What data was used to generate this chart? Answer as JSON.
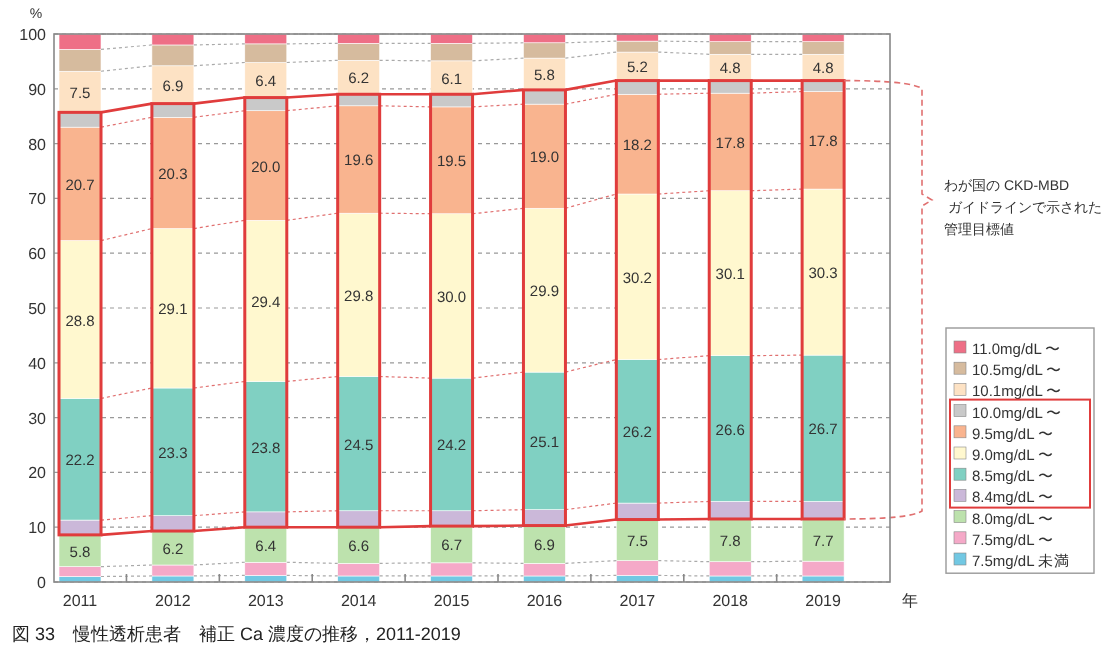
{
  "chart_data": {
    "type": "bar",
    "stacked": true,
    "title": "図 33　慢性透析患者　補正 Ca 濃度の推移，2011-2019",
    "xlabel": "年",
    "ylabel": "%",
    "categories": [
      "2011",
      "2012",
      "2013",
      "2014",
      "2015",
      "2016",
      "2017",
      "2018",
      "2019"
    ],
    "series": [
      {
        "name": "7.5mg/dL 未満",
        "color": "#72c8e3",
        "values": [
          1.0,
          1.1,
          1.2,
          1.1,
          1.1,
          1.1,
          1.2,
          1.1,
          1.1
        ]
      },
      {
        "name": "7.5mg/dL 〜",
        "color": "#f5a9c8",
        "values": [
          1.8,
          2.0,
          2.4,
          2.3,
          2.4,
          2.3,
          2.7,
          2.6,
          2.7
        ]
      },
      {
        "name": "8.0mg/dL 〜",
        "color": "#bde2ad",
        "values": [
          5.8,
          6.2,
          6.4,
          6.6,
          6.7,
          6.9,
          7.5,
          7.8,
          7.7
        ],
        "value_labels": [
          "5.8",
          "6.2",
          "6.4",
          "6.6",
          "6.7",
          "6.9",
          "7.5",
          "7.8",
          "7.7"
        ]
      },
      {
        "name": "8.4mg/dL 〜",
        "color": "#cbb8d9",
        "values": [
          2.7,
          2.8,
          2.8,
          3.0,
          2.8,
          2.9,
          3.0,
          3.2,
          3.2
        ]
      },
      {
        "name": "8.5mg/dL 〜",
        "color": "#80d0c2",
        "values": [
          22.2,
          23.3,
          23.8,
          24.5,
          24.2,
          25.1,
          26.2,
          26.6,
          26.7
        ],
        "value_labels": [
          "22.2",
          "23.3",
          "23.8",
          "24.5",
          "24.2",
          "25.1",
          "26.2",
          "26.6",
          "26.7"
        ]
      },
      {
        "name": "9.0mg/dL 〜",
        "color": "#fff8cf",
        "values": [
          28.8,
          29.1,
          29.4,
          29.8,
          30.0,
          29.9,
          30.2,
          30.1,
          30.3
        ],
        "value_labels": [
          "28.8",
          "29.1",
          "29.4",
          "29.8",
          "30.0",
          "29.9",
          "30.2",
          "30.1",
          "30.3"
        ]
      },
      {
        "name": "9.5mg/dL 〜",
        "color": "#f9b48f",
        "values": [
          20.7,
          20.3,
          20.0,
          19.6,
          19.5,
          19.0,
          18.2,
          17.8,
          17.8
        ],
        "value_labels": [
          "20.7",
          "20.3",
          "20.0",
          "19.6",
          "19.5",
          "19.0",
          "18.2",
          "17.8",
          "17.8"
        ]
      },
      {
        "name": "10.0mg/dL 〜",
        "color": "#c9c9c9",
        "values": [
          2.7,
          2.5,
          2.4,
          2.1,
          2.3,
          2.6,
          2.5,
          2.3,
          2.0
        ]
      },
      {
        "name": "10.1mg/dL 〜",
        "color": "#fde2c4",
        "values": [
          7.5,
          6.9,
          6.4,
          6.2,
          6.1,
          5.8,
          5.2,
          4.8,
          4.8
        ],
        "value_labels": [
          "7.5",
          "6.9",
          "6.4",
          "6.2",
          "6.1",
          "5.8",
          "5.2",
          "4.8",
          "4.8"
        ]
      },
      {
        "name": "10.5mg/dL 〜",
        "color": "#d6bb9e",
        "values": [
          4.0,
          3.8,
          3.4,
          3.1,
          3.2,
          2.8,
          2.0,
          2.3,
          2.3
        ]
      },
      {
        "name": "11.0mg/dL 〜",
        "color": "#ee6f86",
        "values": [
          2.8,
          2.0,
          1.8,
          1.7,
          1.7,
          1.6,
          1.3,
          1.4,
          1.4
        ]
      }
    ],
    "ylim": [
      0,
      100
    ],
    "yticks": [
      0,
      10,
      20,
      30,
      40,
      50,
      60,
      70,
      80,
      90,
      100
    ],
    "grid": "y",
    "legend": "right",
    "annotations": [
      "わが国の CKD-MBD ガイドラインで示された管理目標値"
    ]
  }
}
